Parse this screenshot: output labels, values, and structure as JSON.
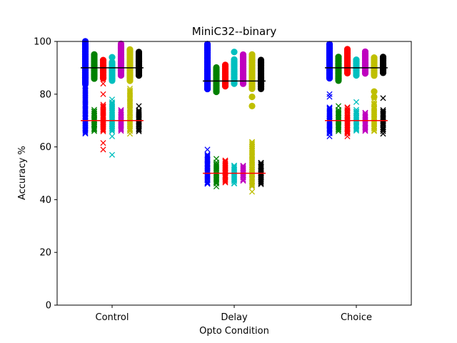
{
  "chart_data": {
    "type": "scatter",
    "title": "MiniC32--binary",
    "xlabel": "Opto Condition",
    "ylabel": "Accuracy %",
    "ylim": [
      0,
      100
    ],
    "yticks": [
      0,
      20,
      40,
      60,
      80,
      100
    ],
    "categories": [
      "Control",
      "Delay",
      "Choice"
    ],
    "grid": false,
    "legend": "none",
    "series_colors": [
      "#0000ff",
      "#008000",
      "#ff0000",
      "#00bfbf",
      "#bf00bf",
      "#bfbf00",
      "#000000"
    ],
    "mean_line_colors": {
      "circle_mean": "#000000",
      "cross_mean": "#ff0000"
    },
    "groups": [
      {
        "category": "Control",
        "circle_mean": 90,
        "cross_mean": 70,
        "series": [
          {
            "color_index": 0,
            "circle_range": [
              84,
              100
            ],
            "cross_range": [
              65,
              83
            ],
            "circle_outliers": [],
            "cross_outliers": []
          },
          {
            "color_index": 1,
            "circle_range": [
              86,
              95
            ],
            "cross_range": [
              66,
              74
            ],
            "circle_outliers": [],
            "cross_outliers": []
          },
          {
            "color_index": 2,
            "circle_range": [
              86,
              93
            ],
            "cross_range": [
              66,
              76
            ],
            "circle_outliers": [],
            "cross_outliers": [
              59,
              61.5,
              80,
              84
            ]
          },
          {
            "color_index": 3,
            "circle_range": [
              85,
              92
            ],
            "cross_range": [
              66,
              77
            ],
            "circle_outliers": [
              94
            ],
            "cross_outliers": [
              57,
              64,
              78
            ]
          },
          {
            "color_index": 4,
            "circle_range": [
              87,
              99
            ],
            "cross_range": [
              66,
              74
            ],
            "circle_outliers": [],
            "cross_outliers": []
          },
          {
            "color_index": 5,
            "circle_range": [
              85,
              97
            ],
            "cross_range": [
              66,
              82
            ],
            "circle_outliers": [],
            "cross_outliers": [
              65
            ]
          },
          {
            "color_index": 6,
            "circle_range": [
              87,
              96
            ],
            "cross_range": [
              66,
              74
            ],
            "circle_outliers": [],
            "cross_outliers": [
              75.5
            ]
          }
        ]
      },
      {
        "category": "Delay",
        "circle_mean": 85,
        "cross_mean": 50,
        "series": [
          {
            "color_index": 0,
            "circle_range": [
              82,
              99
            ],
            "cross_range": [
              46,
              57
            ],
            "circle_outliers": [],
            "cross_outliers": [
              59
            ]
          },
          {
            "color_index": 1,
            "circle_range": [
              81,
              90
            ],
            "cross_range": [
              46,
              54
            ],
            "circle_outliers": [],
            "cross_outliers": [
              45,
              55.5
            ]
          },
          {
            "color_index": 2,
            "circle_range": [
              83,
              91
            ],
            "cross_range": [
              47,
              55
            ],
            "circle_outliers": [],
            "cross_outliers": [
              46.5
            ]
          },
          {
            "color_index": 3,
            "circle_range": [
              84,
              93
            ],
            "cross_range": [
              46,
              53
            ],
            "circle_outliers": [
              96
            ],
            "cross_outliers": []
          },
          {
            "color_index": 4,
            "circle_range": [
              84,
              95
            ],
            "cross_range": [
              47,
              53
            ],
            "circle_outliers": [],
            "cross_outliers": []
          },
          {
            "color_index": 5,
            "circle_range": [
              82,
              95
            ],
            "cross_range": [
              45,
              62
            ],
            "circle_outliers": [
              75.5,
              79
            ],
            "cross_outliers": [
              43
            ]
          },
          {
            "color_index": 6,
            "circle_range": [
              82,
              93
            ],
            "cross_range": [
              46,
              54
            ],
            "circle_outliers": [],
            "cross_outliers": []
          }
        ]
      },
      {
        "category": "Choice",
        "circle_mean": 90,
        "cross_mean": 70,
        "series": [
          {
            "color_index": 0,
            "circle_range": [
              86,
              99
            ],
            "cross_range": [
              65,
              75
            ],
            "circle_outliers": [],
            "cross_outliers": [
              79,
              80,
              64
            ]
          },
          {
            "color_index": 1,
            "circle_range": [
              85,
              94
            ],
            "cross_range": [
              66,
              74
            ],
            "circle_outliers": [],
            "cross_outliers": [
              75.5
            ]
          },
          {
            "color_index": 2,
            "circle_range": [
              88,
              97
            ],
            "cross_range": [
              65,
              75
            ],
            "circle_outliers": [],
            "cross_outliers": [
              64
            ]
          },
          {
            "color_index": 3,
            "circle_range": [
              87,
              93
            ],
            "cross_range": [
              66,
              74
            ],
            "circle_outliers": [],
            "cross_outliers": [
              77
            ]
          },
          {
            "color_index": 4,
            "circle_range": [
              88,
              96
            ],
            "cross_range": [
              66,
              73
            ],
            "circle_outliers": [],
            "cross_outliers": []
          },
          {
            "color_index": 5,
            "circle_range": [
              87,
              94
            ],
            "cross_range": [
              66,
              77
            ],
            "circle_outliers": [
              79,
              81
            ],
            "cross_outliers": []
          },
          {
            "color_index": 6,
            "circle_range": [
              88,
              94
            ],
            "cross_range": [
              66,
              74
            ],
            "circle_outliers": [],
            "cross_outliers": [
              65,
              78.5
            ]
          }
        ]
      }
    ]
  }
}
